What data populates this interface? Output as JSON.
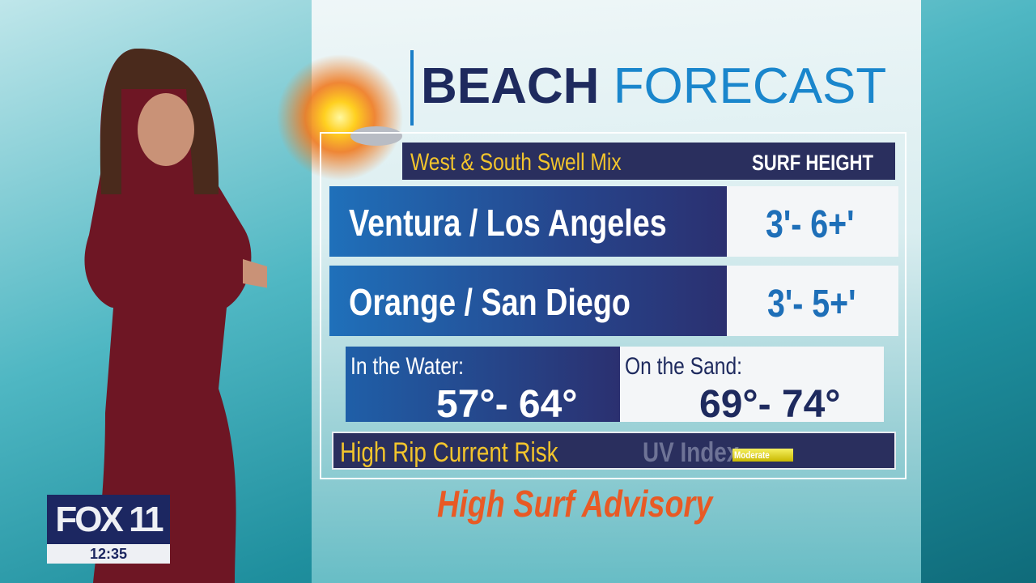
{
  "title": {
    "bold": "BEACH",
    "light": "FORECAST"
  },
  "header": {
    "swell": "West & South Swell Mix",
    "surf_label": "SURF HEIGHT"
  },
  "rows": [
    {
      "location": "Ventura / Los Angeles",
      "surf": "3'- 6+'"
    },
    {
      "location": "Orange / San Diego",
      "surf": "3'- 5+'"
    }
  ],
  "water": {
    "label": "In the Water:",
    "temp": "57°- 64°"
  },
  "sand": {
    "label": "On the Sand:",
    "temp": "69°- 74°"
  },
  "bottom": {
    "rip": "High Rip Current Risk",
    "uv_label": "UV Index",
    "uv_value": "Moderate"
  },
  "advisory": "High Surf Advisory",
  "logo": {
    "station": "FOX 11",
    "time": "12:35"
  },
  "colors": {
    "navy": "#2a2f5e",
    "blue": "#1e6fb8",
    "yellow": "#f2c42c",
    "orange": "#e85a25"
  },
  "icons": {
    "weather": "sun-with-cloud-icon"
  }
}
